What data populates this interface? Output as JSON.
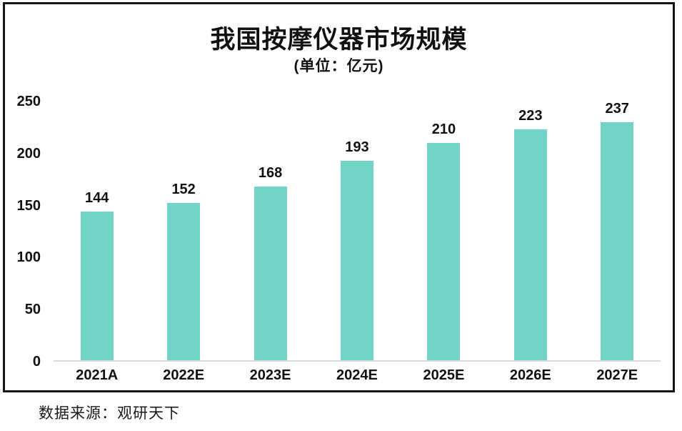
{
  "chart_data": {
    "type": "bar",
    "title": "我国按摩仪器市场规模",
    "subtitle": "(单位：亿元)",
    "categories": [
      "2021A",
      "2022E",
      "2023E",
      "2024E",
      "2025E",
      "2026E",
      "2027E"
    ],
    "values": [
      144,
      152,
      168,
      193,
      210,
      223,
      237
    ],
    "xlabel": "",
    "ylabel": "",
    "ylim": [
      0,
      250
    ],
    "yticks": [
      0,
      50,
      100,
      150,
      200,
      250
    ],
    "grid": false,
    "legend": false,
    "data_labels": true,
    "colors": {
      "bar": "#73d3c6",
      "axis_line": "#d9d9d9",
      "frame": "#141414",
      "text": "#111111"
    }
  },
  "source": {
    "label": "数据来源：观研天下"
  }
}
